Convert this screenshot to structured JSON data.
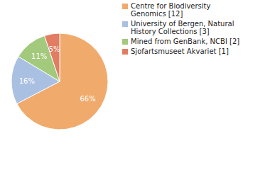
{
  "chart_data": {
    "type": "pie",
    "categories": [
      "Centre for Biodiversity Genomics [12]",
      "University of Bergen, Natural History Collections [3]",
      "Mined from GenBank, NCBI [2]",
      "Sjofartsmuseet Akvariet [1]"
    ],
    "values": [
      66,
      16,
      11,
      5
    ],
    "value_labels": [
      "66%",
      "16%",
      "11%",
      "5%"
    ],
    "colors": [
      "#f0aa6c",
      "#a9c0e2",
      "#a3c97c",
      "#e27c62"
    ],
    "data_labels": true,
    "legend": "right"
  }
}
